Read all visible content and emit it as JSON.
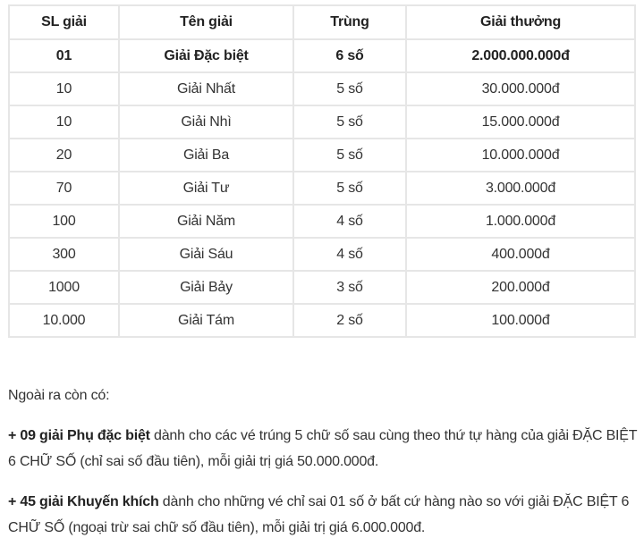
{
  "table": {
    "headers": [
      "SL giải",
      "Tên giải",
      "Trùng",
      "Giải thưởng"
    ],
    "rows": [
      [
        "01",
        "Giải Đặc biệt",
        "6 số",
        "2.000.000.000đ"
      ],
      [
        "10",
        "Giải Nhất",
        "5 số",
        "30.000.000đ"
      ],
      [
        "10",
        "Giải Nhì",
        "5 số",
        "15.000.000đ"
      ],
      [
        "20",
        "Giải Ba",
        "5 số",
        "10.000.000đ"
      ],
      [
        "70",
        "Giải Tư",
        "5 số",
        "3.000.000đ"
      ],
      [
        "100",
        "Giải Năm",
        "4 số",
        "1.000.000đ"
      ],
      [
        "300",
        "Giải Sáu",
        "4 số",
        "400.000đ"
      ],
      [
        "1000",
        "Giải Bảy",
        "3 số",
        "200.000đ"
      ],
      [
        "10.000",
        "Giải Tám",
        "2 số",
        "100.000đ"
      ]
    ]
  },
  "notes": {
    "intro": "Ngoài ra còn có:",
    "items": [
      {
        "bold": "+ 09 giải Phụ đặc biệt",
        "text": " dành cho các vé trúng 5 chữ số sau cùng theo thứ tự hàng của giải ĐẶC BIỆT 6 CHỮ SỐ (chỉ sai số đầu tiên), mỗi giải trị giá 50.000.000đ."
      },
      {
        "bold": "+ 45 giải Khuyến khích",
        "text": " dành cho những vé chỉ sai 01 số ở bất cứ hàng nào so với giải ĐẶC BIỆT 6 CHỮ SỐ (ngoại trừ sai chữ số đầu tiên), mỗi giải trị giá 6.000.000đ."
      }
    ]
  }
}
